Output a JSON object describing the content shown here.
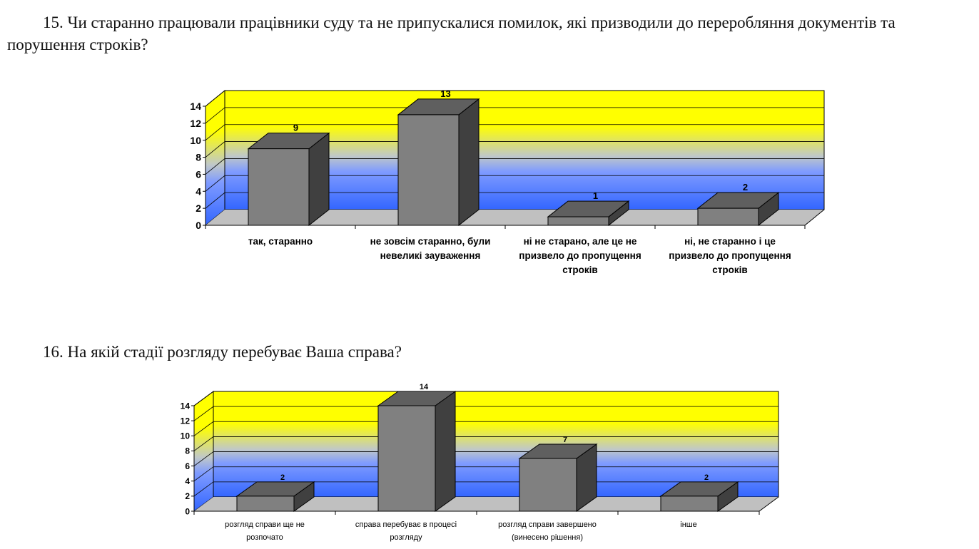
{
  "question15": {
    "text": "15. Чи старанно працювали працівники суду та не припускалися помилок, які призводили до переробляння документів та порушення строків?"
  },
  "question16": {
    "text": "16. На якій стадії розгляду перебуває Ваша справа?"
  },
  "colors": {
    "wall_top": "#ffff00",
    "wall_mid": "#c0c8c8",
    "wall_bottom": "#3366ff",
    "floor": "#c0c0c0",
    "bar_front": "#808080",
    "bar_top": "#5f5f5f",
    "bar_side": "#404040"
  },
  "chart_data": [
    {
      "type": "bar",
      "categories": [
        [
          "так, старанно"
        ],
        [
          "не зовсім старанно, були",
          "невеликі зауваження"
        ],
        [
          "ні не старано, але це не",
          "призвело до пропущення",
          "строків"
        ],
        [
          "ні, не старанно і це",
          "призвело до пропущення",
          "строків"
        ]
      ],
      "values": [
        9,
        13,
        1,
        2
      ],
      "ylim": [
        0,
        14
      ],
      "yticks": [
        0,
        2,
        4,
        6,
        8,
        10,
        12,
        14
      ],
      "grid": true,
      "legend": "none"
    },
    {
      "type": "bar",
      "categories": [
        [
          "розгляд справи ще не",
          "розпочато"
        ],
        [
          "справа перебуває в процесі",
          "розгляду"
        ],
        [
          "розгляд справи завершено",
          "(винесено рішення)"
        ],
        [
          "інше"
        ]
      ],
      "values": [
        2,
        14,
        7,
        2
      ],
      "ylim": [
        0,
        14
      ],
      "yticks": [
        0,
        2,
        4,
        6,
        8,
        10,
        12,
        14
      ],
      "grid": true,
      "legend": "none"
    }
  ]
}
